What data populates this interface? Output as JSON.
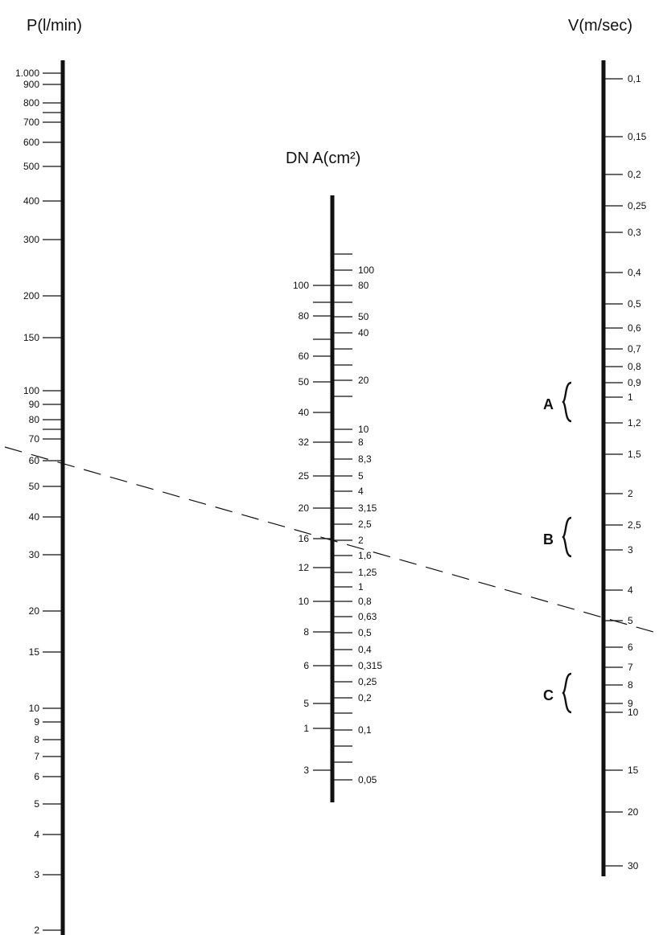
{
  "axes": {
    "flow": {
      "title": "P(l/min)",
      "ticks": [
        {
          "label": "1.000"
        },
        {
          "label": "900"
        },
        {
          "label": "800"
        },
        {
          "label": ""
        },
        {
          "label": "700"
        },
        {
          "label": "600"
        },
        {
          "label": "500"
        },
        {
          "label": "400"
        },
        {
          "label": "300"
        },
        {
          "label": "200"
        },
        {
          "label": "150"
        },
        {
          "label": "100"
        },
        {
          "label": "90"
        },
        {
          "label": "80"
        },
        {
          "label": ""
        },
        {
          "label": "70"
        },
        {
          "label": "60"
        },
        {
          "label": "50"
        },
        {
          "label": "40"
        },
        {
          "label": "30"
        },
        {
          "label": "20"
        },
        {
          "label": "15"
        },
        {
          "label": "10"
        },
        {
          "label": "9"
        },
        {
          "label": "8"
        },
        {
          "label": "7"
        },
        {
          "label": "6"
        },
        {
          "label": "5"
        },
        {
          "label": "4"
        },
        {
          "label": "3"
        },
        {
          "label": "2"
        }
      ]
    },
    "diameter": {
      "title": "DN A(cm²)",
      "left_ticks": [
        {
          "label": "100"
        },
        {
          "label": ""
        },
        {
          "label": "80"
        },
        {
          "label": ""
        },
        {
          "label": "60"
        },
        {
          "label": "50"
        },
        {
          "label": "40"
        },
        {
          "label": "32"
        },
        {
          "label": "25"
        },
        {
          "label": "20"
        },
        {
          "label": "16"
        },
        {
          "label": "12"
        },
        {
          "label": "10"
        },
        {
          "label": "8"
        },
        {
          "label": "6"
        },
        {
          "label": "5"
        },
        {
          "label": "1"
        },
        {
          "label": "3"
        }
      ],
      "right_ticks": [
        {
          "label": ""
        },
        {
          "label": "100"
        },
        {
          "label": "80"
        },
        {
          "label": ""
        },
        {
          "label": "50"
        },
        {
          "label": "40"
        },
        {
          "label": ""
        },
        {
          "label": ""
        },
        {
          "label": "20"
        },
        {
          "label": ""
        },
        {
          "label": "10"
        },
        {
          "label": "8"
        },
        {
          "label": "8,3"
        },
        {
          "label": "5"
        },
        {
          "label": "4"
        },
        {
          "label": "3,15"
        },
        {
          "label": "2,5"
        },
        {
          "label": "2"
        },
        {
          "label": "1,6"
        },
        {
          "label": "1,25"
        },
        {
          "label": "1"
        },
        {
          "label": "0,8"
        },
        {
          "label": "0,63"
        },
        {
          "label": "0,5"
        },
        {
          "label": "0,4"
        },
        {
          "label": "0,315"
        },
        {
          "label": "0,25"
        },
        {
          "label": "0,2"
        },
        {
          "label": ""
        },
        {
          "label": "0,1"
        },
        {
          "label": ""
        },
        {
          "label": ""
        },
        {
          "label": "0,05"
        }
      ]
    },
    "velocity": {
      "title": "V(m/sec)",
      "ticks": [
        {
          "label": "0,1"
        },
        {
          "label": "0,15"
        },
        {
          "label": "0,2"
        },
        {
          "label": "0,25"
        },
        {
          "label": "0,3"
        },
        {
          "label": "0,4"
        },
        {
          "label": "0,5"
        },
        {
          "label": "0,6"
        },
        {
          "label": "0,7"
        },
        {
          "label": "0,8"
        },
        {
          "label": "0,9"
        },
        {
          "label": "1"
        },
        {
          "label": "1,2"
        },
        {
          "label": "1,5"
        },
        {
          "label": "2"
        },
        {
          "label": "2,5"
        },
        {
          "label": "3"
        },
        {
          "label": "4"
        },
        {
          "label": "5"
        },
        {
          "label": "6"
        },
        {
          "label": "7"
        },
        {
          "label": "8"
        },
        {
          "label": "9"
        },
        {
          "label": "10"
        },
        {
          "label": "15"
        },
        {
          "label": "20"
        },
        {
          "label": "30"
        }
      ]
    }
  },
  "ranges": [
    {
      "label": "A",
      "from": "0,9",
      "to": "1,2"
    },
    {
      "label": "B",
      "from": "2,5",
      "to": "3"
    },
    {
      "label": "C",
      "from": "8",
      "to": "10"
    }
  ],
  "example": {
    "flow": "60",
    "diameter": "16",
    "velocity": "5"
  },
  "colors": {
    "ink": "#111111",
    "background": "#ffffff"
  }
}
